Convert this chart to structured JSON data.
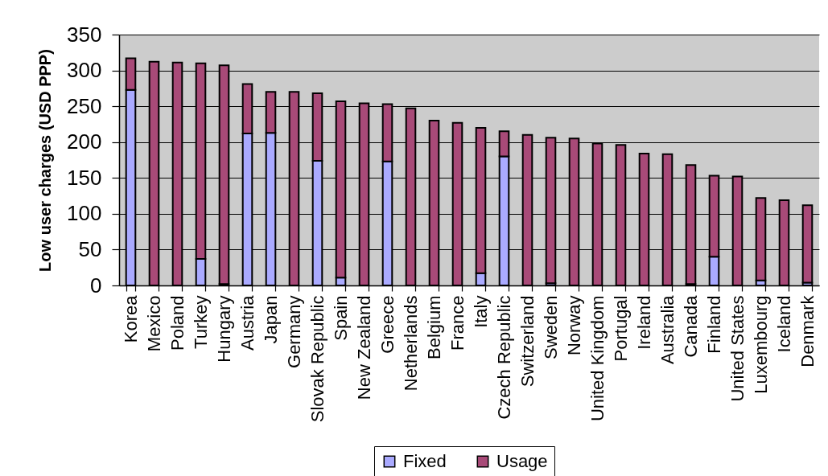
{
  "chart_data": {
    "type": "bar",
    "stacked": true,
    "categories": [
      "Korea",
      "Mexico",
      "Poland",
      "Turkey",
      "Hungary",
      "Austria",
      "Japan",
      "Germany",
      "Slovak Republic",
      "Spain",
      "New Zealand",
      "Greece",
      "Netherlands",
      "Belgium",
      "France",
      "Italy",
      "Czech Republic",
      "Switzerland",
      "Sweden",
      "Norway",
      "United Kingdom",
      "Portugal",
      "Ireland",
      "Australia",
      "Canada",
      "Finland",
      "United States",
      "Luxembourg",
      "Iceland",
      "Denmark"
    ],
    "series": [
      {
        "name": "Fixed",
        "color": "#aaaaff",
        "values": [
          273,
          0,
          0,
          37,
          2,
          212,
          213,
          0,
          174,
          11,
          0,
          173,
          0,
          0,
          0,
          17,
          180,
          0,
          3,
          0,
          0,
          0,
          0,
          0,
          2,
          40,
          0,
          7,
          0,
          4
        ]
      },
      {
        "name": "Usage",
        "color": "#a84a78",
        "values": [
          44,
          312,
          311,
          273,
          305,
          69,
          57,
          270,
          94,
          246,
          254,
          80,
          247,
          230,
          227,
          203,
          35,
          210,
          203,
          205,
          198,
          196,
          184,
          183,
          166,
          113,
          152,
          115,
          119,
          108
        ]
      }
    ],
    "ylabel": "Low user charges (USD PPP)",
    "ylim": [
      0,
      350
    ],
    "yticks": [
      0,
      50,
      100,
      150,
      200,
      250,
      300,
      350
    ],
    "grid": "y",
    "legend": "bottom"
  }
}
